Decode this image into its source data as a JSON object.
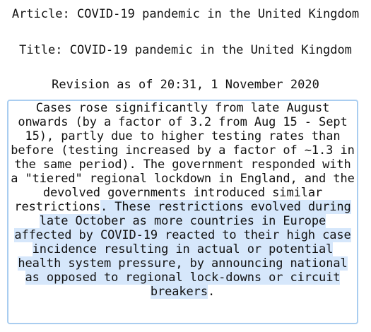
{
  "article": {
    "label": "Article:",
    "value": "COVID-19 pandemic in the United Kingdom"
  },
  "title": {
    "label": "Title:",
    "value": "COVID-19 pandemic in the United Kingdom"
  },
  "revision": {
    "text": "Revision as of 20:31, 1 November 2020"
  },
  "excerpt": {
    "plain": "Cases rose significantly from late August onwards (by a factor of 3.2 from Aug 15 - Sept 15), partly due to higher testing rates than before (testing increased by a factor of ~1.3 in the same period). The government responded with a \"tiered\" regional lockdown in England, and the devolved governments introduced similar restrictions",
    "highlighted": ". These restrictions evolved during late October as more countries in Europe affected by COVID-19 reacted to their high case incidence resulting in actual or potential health system pressure, by announcing national as opposed to regional lock-downs or circuit breakers",
    "ending": "."
  },
  "colors": {
    "highlight": "#d6e7fb",
    "border": "#a9cdf0"
  }
}
